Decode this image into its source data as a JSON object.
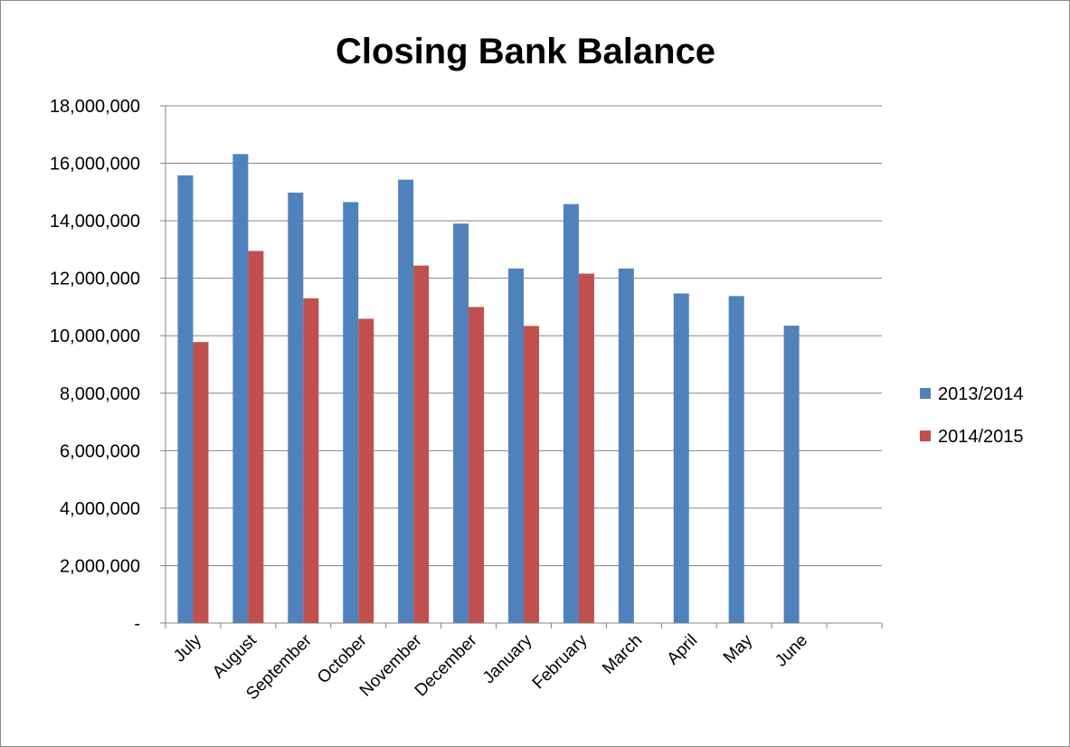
{
  "chart_data": {
    "type": "bar",
    "title": "Closing Bank Balance",
    "xlabel": "",
    "ylabel": "",
    "categories": [
      "July",
      "August",
      "September",
      "October",
      "November",
      "December",
      "January",
      "February",
      "March",
      "April",
      "May",
      "June"
    ],
    "series": [
      {
        "name": "2013/2014",
        "color": "#4f81bd",
        "values": [
          15580000,
          16320000,
          14980000,
          14650000,
          15430000,
          13900000,
          12340000,
          14580000,
          12340000,
          11470000,
          11380000,
          10350000
        ]
      },
      {
        "name": "2014/2015",
        "color": "#c0504d",
        "values": [
          9780000,
          12950000,
          11300000,
          10590000,
          12440000,
          11000000,
          10340000,
          12160000,
          null,
          null,
          null,
          null
        ]
      }
    ],
    "ylim": [
      0,
      18000000
    ],
    "yticks": [
      0,
      2000000,
      4000000,
      6000000,
      8000000,
      10000000,
      12000000,
      14000000,
      16000000,
      18000000
    ],
    "ytick_labels": [
      "-",
      "2,000,000",
      "4,000,000",
      "6,000,000",
      "8,000,000",
      "10,000,000",
      "12,000,000",
      "14,000,000",
      "16,000,000",
      "18,000,000"
    ],
    "grid": true,
    "legend": "right"
  }
}
